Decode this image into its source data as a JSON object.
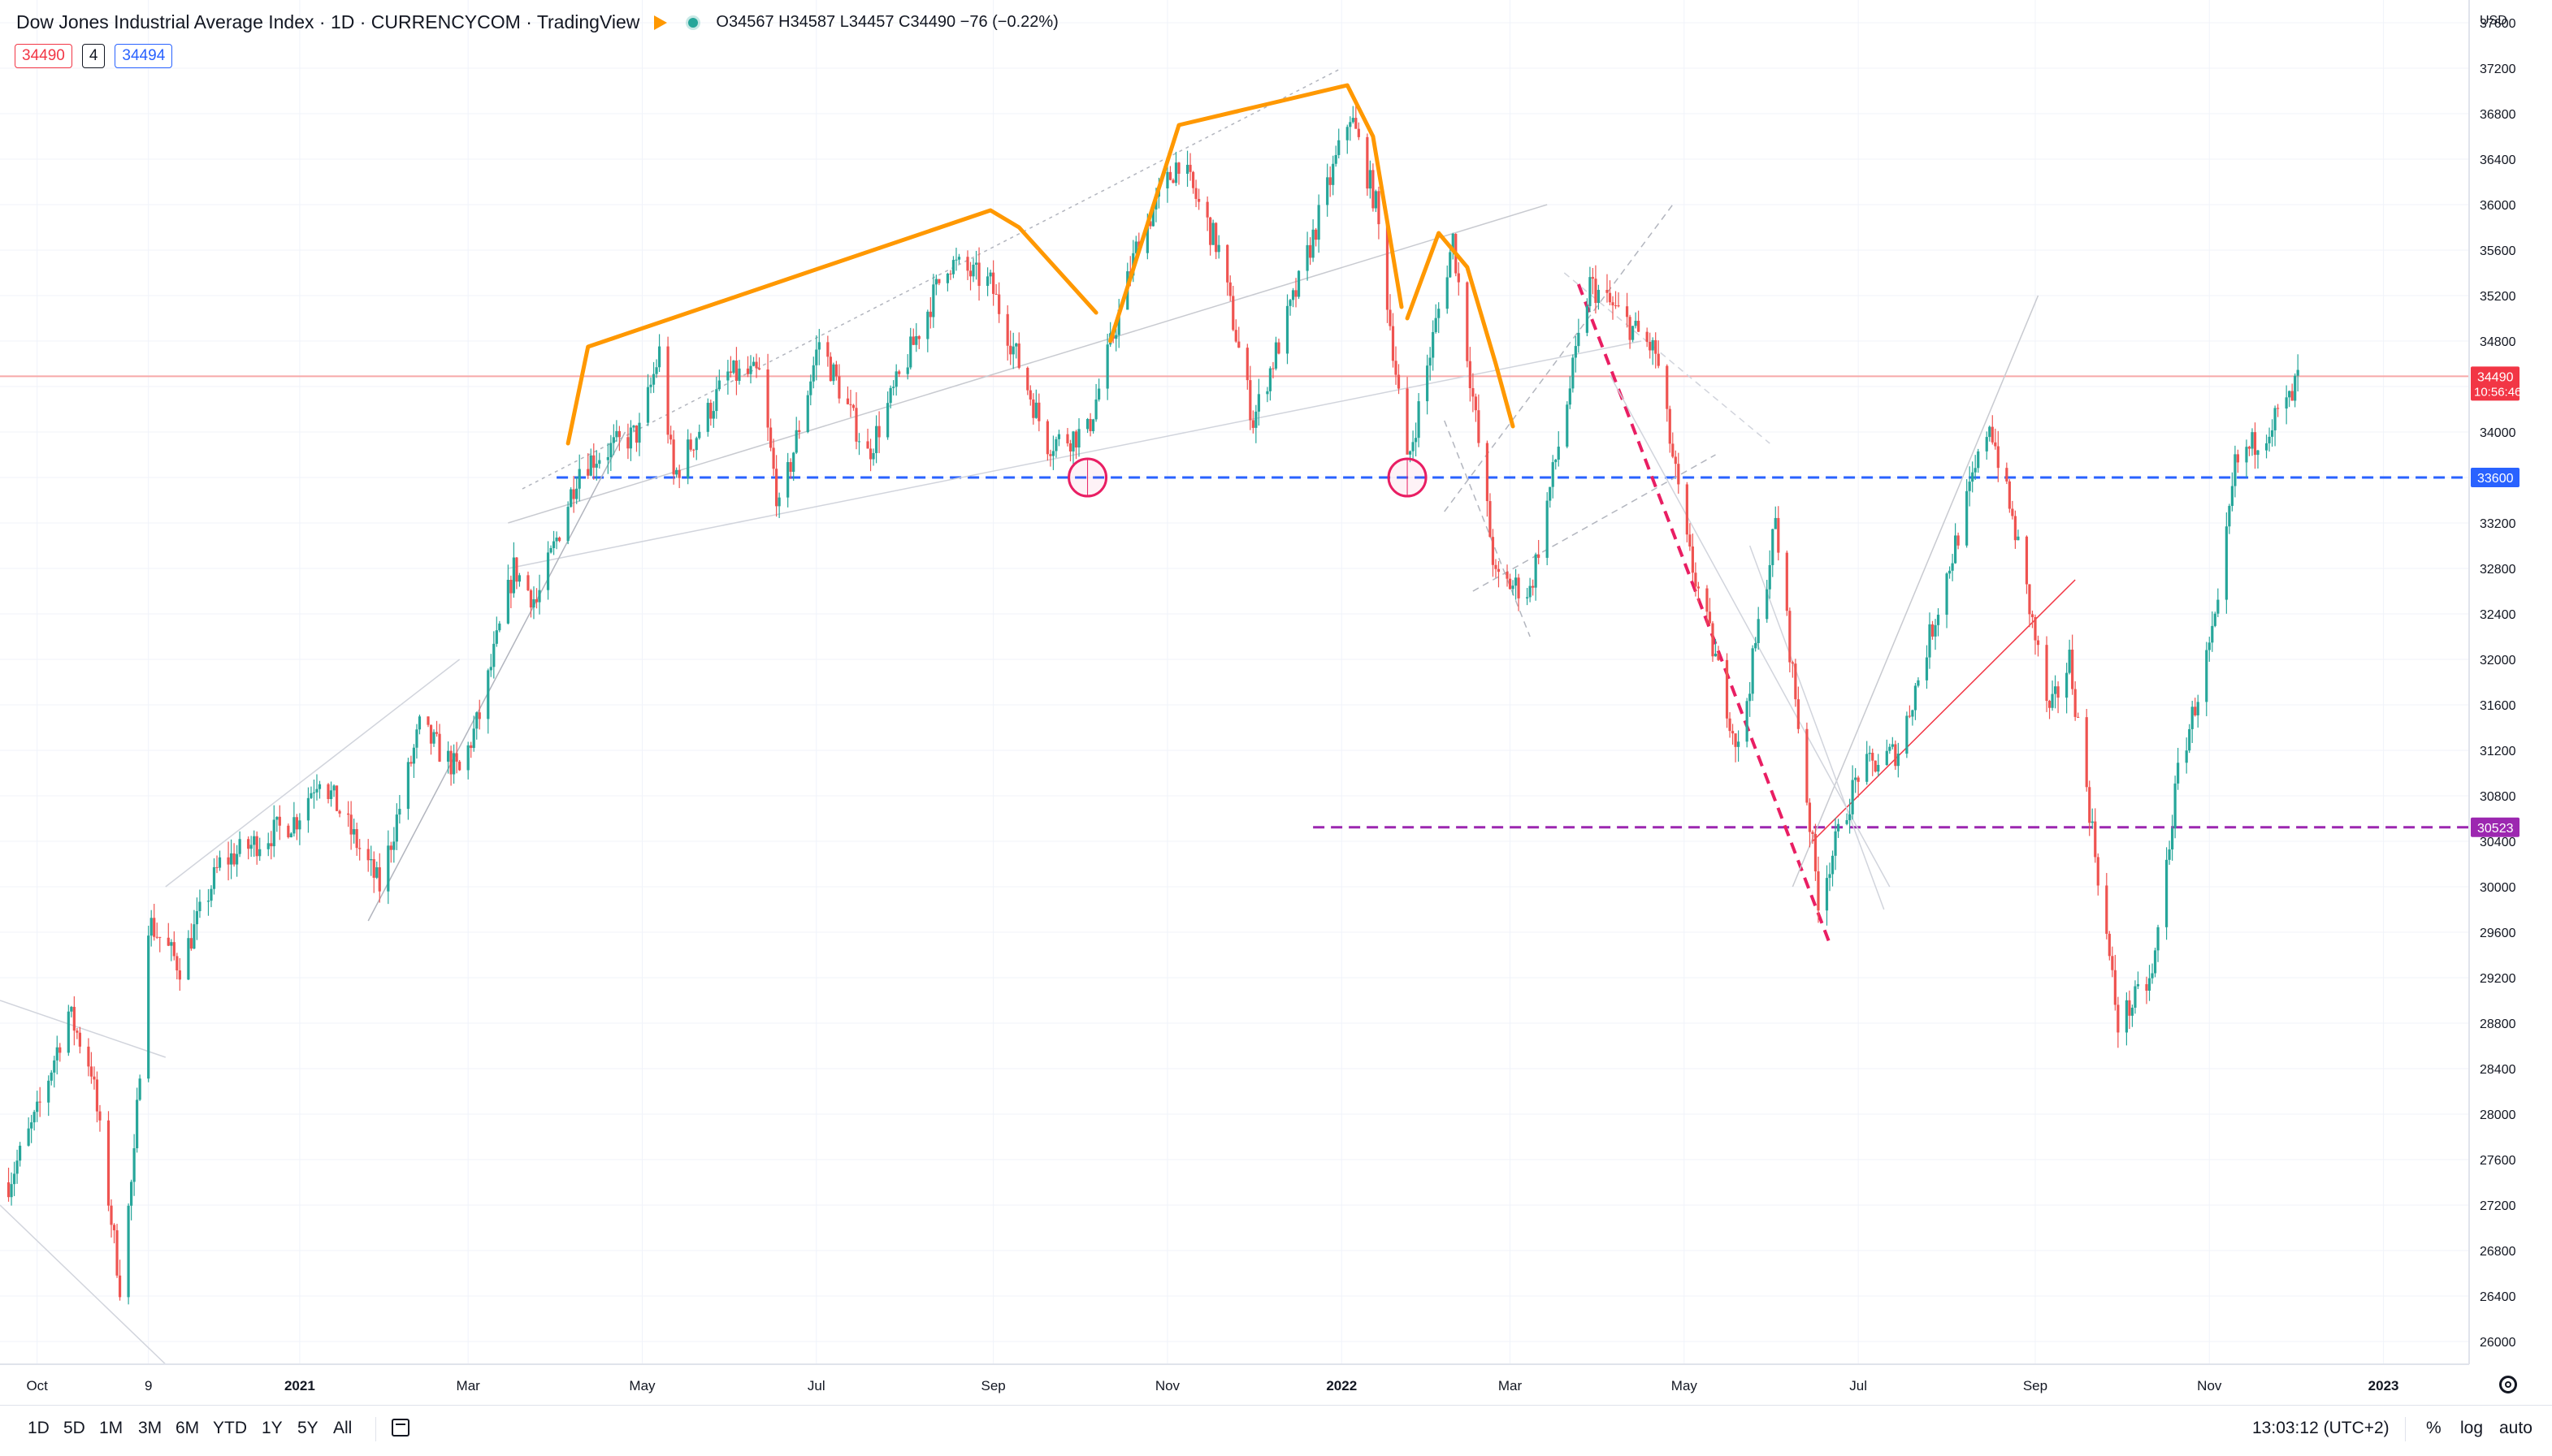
{
  "legend": {
    "title": "Dow Jones Industrial Average Index · 1D · CURRENCYCOM · TradingView",
    "ohlc": "O34567 H34587 L34457 C34490 −76 (−0.22%)",
    "flag_icon": "flag-icon",
    "status_icon": "market-open-dot-icon"
  },
  "pricebox": {
    "sell": "34490",
    "spread": "4",
    "buy": "34494"
  },
  "axis": {
    "currency": "USD",
    "scale": "linear",
    "grid": true
  },
  "chart_data": {
    "type": "candlestick",
    "title": "Dow Jones Industrial Average Index · 1D · CURRENCYCOM · TradingView",
    "ylim": [
      25800,
      37800
    ],
    "y_ticks": [
      37600,
      37200,
      36800,
      36400,
      36000,
      35600,
      35200,
      34800,
      34400,
      34000,
      33600,
      33200,
      32800,
      32400,
      32000,
      31600,
      31200,
      30800,
      30400,
      30000,
      29600,
      29200,
      28800,
      28400,
      28000,
      27600,
      27200,
      26800,
      26400,
      26000
    ],
    "xlim": [
      "2020-09-18",
      "2023-01-31"
    ],
    "x_ticks": [
      {
        "label": "Oct",
        "date": "2020-10-01",
        "year": false
      },
      {
        "label": "9",
        "date": "2020-11-09",
        "year": false
      },
      {
        "label": "2021",
        "date": "2021-01-01",
        "year": true
      },
      {
        "label": "Mar",
        "date": "2021-03-01",
        "year": false
      },
      {
        "label": "May",
        "date": "2021-05-01",
        "year": false
      },
      {
        "label": "Jul",
        "date": "2021-07-01",
        "year": false
      },
      {
        "label": "Sep",
        "date": "2021-09-01",
        "year": false
      },
      {
        "label": "Nov",
        "date": "2021-11-01",
        "year": false
      },
      {
        "label": "2022",
        "date": "2022-01-01",
        "year": true
      },
      {
        "label": "Mar",
        "date": "2022-03-01",
        "year": false
      },
      {
        "label": "May",
        "date": "2022-05-01",
        "year": false
      },
      {
        "label": "Jul",
        "date": "2022-07-01",
        "year": false
      },
      {
        "label": "Sep",
        "date": "2022-09-01",
        "year": false
      },
      {
        "label": "Nov",
        "date": "2022-11-01",
        "year": false
      },
      {
        "label": "2023",
        "date": "2023-01-01",
        "year": true
      }
    ],
    "price_path": [
      [
        "2020-09-21",
        27400
      ],
      [
        "2020-10-01",
        28000
      ],
      [
        "2020-10-12",
        28900
      ],
      [
        "2020-10-20",
        28400
      ],
      [
        "2020-10-30",
        26500
      ],
      [
        "2020-11-04",
        27600
      ],
      [
        "2020-11-09",
        29700
      ],
      [
        "2020-11-20",
        29300
      ],
      [
        "2020-12-04",
        30200
      ],
      [
        "2020-12-31",
        30600
      ],
      [
        "2021-01-08",
        31000
      ],
      [
        "2021-01-29",
        30000
      ],
      [
        "2021-02-12",
        31400
      ],
      [
        "2021-02-26",
        31000
      ],
      [
        "2021-03-05",
        31500
      ],
      [
        "2021-03-17",
        32800
      ],
      [
        "2021-03-25",
        32500
      ],
      [
        "2021-04-09",
        33700
      ],
      [
        "2021-04-30",
        34000
      ],
      [
        "2021-05-07",
        34700
      ],
      [
        "2021-05-12",
        33600
      ],
      [
        "2021-05-31",
        34500
      ],
      [
        "2021-06-11",
        34500
      ],
      [
        "2021-06-18",
        33300
      ],
      [
        "2021-07-02",
        34800
      ],
      [
        "2021-07-19",
        33800
      ],
      [
        "2021-08-16",
        35500
      ],
      [
        "2021-08-31",
        35300
      ],
      [
        "2021-09-20",
        33900
      ],
      [
        "2021-10-04",
        34000
      ],
      [
        "2021-10-22",
        35700
      ],
      [
        "2021-11-05",
        36400
      ],
      [
        "2021-11-19",
        35600
      ],
      [
        "2021-12-01",
        34100
      ],
      [
        "2021-12-17",
        35300
      ],
      [
        "2022-01-04",
        36800
      ],
      [
        "2022-01-13",
        36000
      ],
      [
        "2022-01-24",
        33700
      ],
      [
        "2022-02-09",
        35700
      ],
      [
        "2022-02-24",
        32700
      ],
      [
        "2022-03-08",
        32600
      ],
      [
        "2022-03-29",
        35300
      ],
      [
        "2022-04-21",
        34700
      ],
      [
        "2022-05-02",
        33000
      ],
      [
        "2022-05-20",
        31200
      ],
      [
        "2022-06-02",
        33200
      ],
      [
        "2022-06-17",
        29900
      ],
      [
        "2022-07-01",
        31000
      ],
      [
        "2022-07-15",
        31200
      ],
      [
        "2022-08-16",
        34100
      ],
      [
        "2022-08-26",
        33000
      ],
      [
        "2022-09-06",
        31500
      ],
      [
        "2022-09-13",
        32000
      ],
      [
        "2022-09-30",
        28800
      ],
      [
        "2022-10-12",
        29200
      ],
      [
        "2022-10-21",
        31000
      ],
      [
        "2022-11-04",
        32400
      ],
      [
        "2022-11-10",
        33700
      ],
      [
        "2022-11-30",
        34300
      ],
      [
        "2022-12-02",
        34490
      ]
    ],
    "horizontal_levels": [
      {
        "value": 33600,
        "color": "#2962ff",
        "start": "2021-04-01",
        "style": "dashed"
      },
      {
        "value": 30523,
        "color": "#9c27b0",
        "start": "2021-12-22",
        "style": "dashed"
      },
      {
        "value": 34490,
        "color": "#f7a9a9",
        "start": "2020-09-18",
        "style": "solid"
      }
    ],
    "price_labels": [
      {
        "value": 34490,
        "text": "34490",
        "sub": "10:56:46",
        "color": "#f23645"
      },
      {
        "value": 33600,
        "text": "33600",
        "color": "#2962ff"
      },
      {
        "value": 30523,
        "text": "30523",
        "color": "#9c27b0"
      }
    ],
    "circles": [
      {
        "date": "2021-10-04",
        "value": 33600,
        "color": "#e91e63"
      },
      {
        "date": "2022-01-24",
        "value": 33600,
        "color": "#e91e63"
      }
    ],
    "head_and_shoulders": [
      {
        "color": "#ff9800",
        "points": [
          [
            "2021-04-05",
            33900
          ],
          [
            "2021-04-12",
            34750
          ],
          [
            "2021-08-31",
            35950
          ],
          [
            "2021-09-10",
            35800
          ],
          [
            "2021-10-07",
            35050
          ]
        ]
      },
      {
        "color": "#ff9800",
        "points": [
          [
            "2021-10-12",
            34800
          ],
          [
            "2021-11-05",
            36700
          ],
          [
            "2022-01-03",
            37050
          ],
          [
            "2022-01-12",
            36600
          ],
          [
            "2022-01-22",
            35100
          ]
        ]
      },
      {
        "color": "#ff9800",
        "points": [
          [
            "2022-01-24",
            35000
          ],
          [
            "2022-02-04",
            35750
          ],
          [
            "2022-02-14",
            35450
          ],
          [
            "2022-02-24",
            34600
          ],
          [
            "2022-03-02",
            34050
          ]
        ]
      }
    ],
    "trend_lines": [
      {
        "from": [
          "2021-03-20",
          33500
        ],
        "to": [
          "2022-01-01",
          37200
        ],
        "color": "#b2b5be",
        "dash": "dotted"
      },
      {
        "from": [
          "2021-03-15",
          33200
        ],
        "to": [
          "2022-03-14",
          36000
        ],
        "color": "#c8cad0",
        "dash": "solid"
      },
      {
        "from": [
          "2021-03-15",
          32800
        ],
        "to": [
          "2022-04-16",
          34800
        ],
        "color": "#d1d4dc",
        "dash": "solid"
      },
      {
        "from": [
          "2020-11-15",
          30000
        ],
        "to": [
          "2021-02-26",
          32000
        ],
        "color": "#d1d4dc",
        "dash": "solid"
      },
      {
        "from": [
          "2021-01-25",
          29700
        ],
        "to": [
          "2021-04-25",
          34000
        ],
        "color": "#b2b5be",
        "dash": "solid"
      },
      {
        "from": [
          "2020-09-18",
          29000
        ],
        "to": [
          "2020-11-15",
          28500
        ],
        "color": "#d1d4dc",
        "dash": "solid"
      },
      {
        "from": [
          "2020-09-18",
          27200
        ],
        "to": [
          "2020-11-15",
          25800
        ],
        "color": "#d1d4dc",
        "dash": "solid"
      },
      {
        "from": [
          "2022-03-25",
          35300
        ],
        "to": [
          "2022-06-21",
          29500
        ],
        "color": "#e91e63",
        "dash": "dashed"
      },
      {
        "from": [
          "2022-06-15",
          30400
        ],
        "to": [
          "2022-09-15",
          32700
        ],
        "color": "#f23645",
        "dash": "solid"
      },
      {
        "from": [
          "2022-06-08",
          30000
        ],
        "to": [
          "2022-09-02",
          35200
        ],
        "color": "#c8cad0",
        "dash": "solid"
      },
      {
        "from": [
          "2022-02-06",
          33300
        ],
        "to": [
          "2022-04-27",
          36000
        ],
        "color": "#b2b5be",
        "dash": "dashed"
      },
      {
        "from": [
          "2022-02-16",
          32600
        ],
        "to": [
          "2022-05-12",
          33800
        ],
        "color": "#b2b5be",
        "dash": "dashed"
      },
      {
        "from": [
          "2022-03-20",
          35400
        ],
        "to": [
          "2022-05-31",
          33900
        ],
        "color": "#d1d4dc",
        "dash": "dashed"
      },
      {
        "from": [
          "2022-02-06",
          34100
        ],
        "to": [
          "2022-03-08",
          32200
        ],
        "color": "#b2b5be",
        "dash": "dashed"
      },
      {
        "from": [
          "2022-04-05",
          34500
        ],
        "to": [
          "2022-07-12",
          30000
        ],
        "color": "#d1d4dc",
        "dash": "solid"
      },
      {
        "from": [
          "2022-05-24",
          33000
        ],
        "to": [
          "2022-07-10",
          29800
        ],
        "color": "#d1d4dc",
        "dash": "solid"
      }
    ]
  },
  "bottombar": {
    "timeframes": [
      "1D",
      "5D",
      "1M",
      "3M",
      "6M",
      "YTD",
      "1Y",
      "5Y",
      "All"
    ],
    "calendar_icon": "calendar-range-icon",
    "time": "13:03:12 (UTC+2)",
    "percent_label": "%",
    "log_label": "log",
    "auto_label": "auto"
  }
}
